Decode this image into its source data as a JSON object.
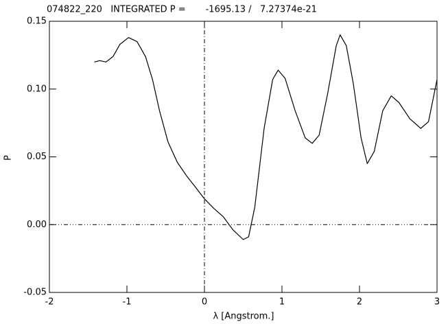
{
  "chart_data": {
    "type": "line",
    "title": "074822_220   INTEGRATED P =       -1695.13 /   7.27374e-21",
    "x_label": "λ [Angstrom.]",
    "y_label": "P",
    "x": [
      -1.42,
      -1.35,
      -1.27,
      -1.18,
      -1.09,
      -0.98,
      -0.87,
      -0.76,
      -0.67,
      -0.58,
      -0.47,
      -0.35,
      -0.23,
      -0.12,
      0.0,
      0.12,
      0.24,
      0.37,
      0.5,
      0.57,
      0.65,
      0.77,
      0.88,
      0.95,
      1.04,
      1.17,
      1.3,
      1.39,
      1.48,
      1.59,
      1.7,
      1.75,
      1.83,
      1.92,
      2.02,
      2.1,
      2.19,
      2.3,
      2.41,
      2.51,
      2.65,
      2.79,
      2.89,
      3.0
    ],
    "series": [
      {
        "color": "#000000",
        "values": [
          0.12,
          0.121,
          0.12,
          0.124,
          0.133,
          0.138,
          0.135,
          0.124,
          0.107,
          0.084,
          0.061,
          0.046,
          0.036,
          0.028,
          0.019,
          0.012,
          0.006,
          -0.004,
          -0.011,
          -0.009,
          0.013,
          0.071,
          0.107,
          0.114,
          0.108,
          0.084,
          0.064,
          0.06,
          0.066,
          0.097,
          0.132,
          0.14,
          0.132,
          0.104,
          0.064,
          0.045,
          0.054,
          0.084,
          0.095,
          0.09,
          0.078,
          0.071,
          0.076,
          0.107
        ]
      }
    ],
    "xlim": [
      -2,
      3
    ],
    "xticks": [
      -2,
      -1,
      0,
      1,
      2,
      3
    ],
    "ylim": [
      -0.05,
      0.15
    ],
    "yticks": [
      -0.05,
      {
        "value": 0,
        "label": "0.00"
      },
      0.05,
      {
        "value": 0.1,
        "label": "0.10"
      },
      {
        "value": 0.15,
        "label": "0.15"
      }
    ]
  }
}
